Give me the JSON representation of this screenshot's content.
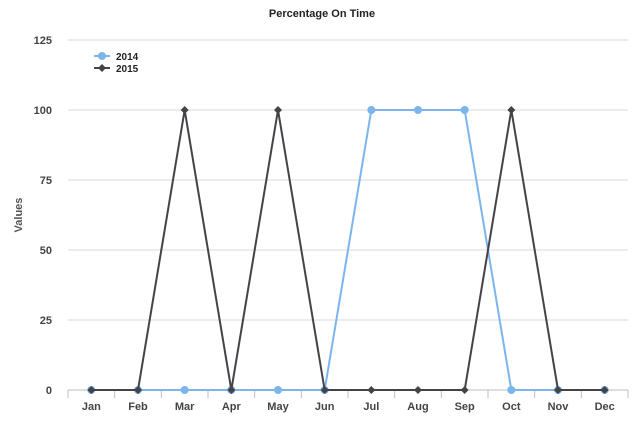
{
  "chart_data": {
    "type": "line",
    "title": "Percentage On Time",
    "xlabel": "",
    "ylabel": "Values",
    "categories": [
      "Jan",
      "Feb",
      "Mar",
      "Apr",
      "May",
      "Jun",
      "Jul",
      "Aug",
      "Sep",
      "Oct",
      "Nov",
      "Dec"
    ],
    "yticks": [
      "0",
      "25",
      "50",
      "75",
      "100",
      "125"
    ],
    "ylim": [
      0,
      125
    ],
    "grid": true,
    "legend_position": "top-left",
    "series": [
      {
        "name": "2014",
        "color": "#7cb5ec",
        "marker": "circle",
        "values": [
          0,
          0,
          0,
          0,
          0,
          0,
          100,
          100,
          100,
          0,
          0,
          0
        ]
      },
      {
        "name": "2015",
        "color": "#434348",
        "marker": "diamond",
        "values": [
          0,
          0,
          100,
          0,
          100,
          0,
          0,
          0,
          0,
          100,
          0,
          0
        ]
      }
    ]
  }
}
